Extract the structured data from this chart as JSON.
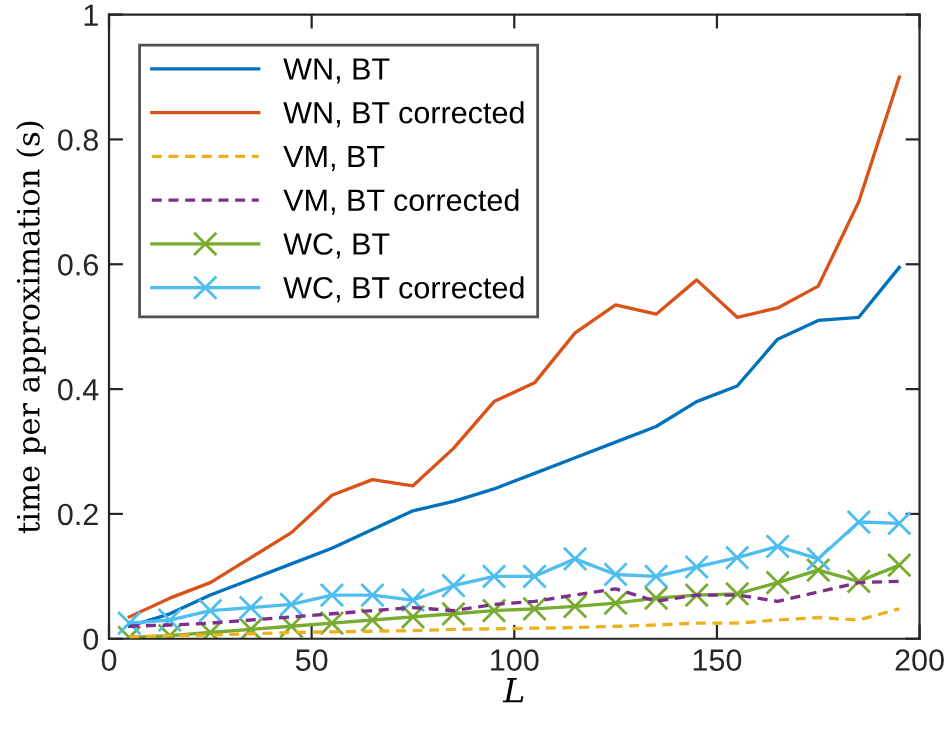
{
  "chart_data": {
    "type": "line",
    "xlabel": "L",
    "ylabel": "time per approximation (s)",
    "x": [
      5,
      15,
      25,
      35,
      45,
      55,
      65,
      75,
      85,
      95,
      105,
      115,
      125,
      135,
      145,
      155,
      165,
      175,
      185,
      195
    ],
    "xlim": [
      0,
      200
    ],
    "xticks": [
      0,
      50,
      100,
      150,
      200
    ],
    "ylim": [
      0,
      1
    ],
    "yticks": [
      0,
      {
        "value": 0.2,
        "label": "0.2"
      },
      {
        "value": 0.4,
        "label": "0.4"
      },
      {
        "value": 0.6,
        "label": "0.6"
      },
      {
        "value": 0.8,
        "label": "0.8"
      },
      1
    ],
    "grid": false,
    "legend": "top left",
    "series": [
      {
        "name": "WN, BT",
        "color": "#0072bd",
        "line_style": "solid",
        "marker": "none",
        "values": [
          0.02,
          0.04,
          0.07,
          0.095,
          0.12,
          0.145,
          0.175,
          0.205,
          0.22,
          0.24,
          0.265,
          0.29,
          0.315,
          0.34,
          0.38,
          0.405,
          0.48,
          0.51,
          0.515,
          0.595
        ]
      },
      {
        "name": "WN, BT corrected",
        "color": "#d95319",
        "line_style": "solid",
        "marker": "none",
        "values": [
          0.035,
          0.065,
          0.09,
          0.13,
          0.17,
          0.23,
          0.255,
          0.245,
          0.305,
          0.38,
          0.41,
          0.49,
          0.535,
          0.52,
          0.575,
          0.515,
          0.53,
          0.565,
          0.7,
          0.9
        ]
      },
      {
        "name": "VM, BT",
        "color": "#edb120",
        "line_style": "dashed",
        "marker": "none",
        "values": [
          0.003,
          0.005,
          0.006,
          0.008,
          0.01,
          0.011,
          0.012,
          0.013,
          0.015,
          0.016,
          0.017,
          0.018,
          0.02,
          0.022,
          0.025,
          0.025,
          0.03,
          0.034,
          0.03,
          0.048
        ]
      },
      {
        "name": "VM, BT corrected",
        "color": "#7e2f8e",
        "line_style": "dashed",
        "marker": "none",
        "values": [
          0.02,
          0.022,
          0.025,
          0.03,
          0.035,
          0.04,
          0.045,
          0.05,
          0.045,
          0.055,
          0.06,
          0.07,
          0.08,
          0.06,
          0.07,
          0.07,
          0.06,
          0.075,
          0.09,
          0.092
        ]
      },
      {
        "name": "WC, BT",
        "color": "#77ac30",
        "line_style": "solid",
        "marker": "cross",
        "values": [
          0.002,
          0.005,
          0.01,
          0.015,
          0.02,
          0.025,
          0.03,
          0.035,
          0.04,
          0.045,
          0.048,
          0.052,
          0.057,
          0.065,
          0.07,
          0.072,
          0.09,
          0.11,
          0.092,
          0.118
        ]
      },
      {
        "name": "WC, BT corrected",
        "color": "#4dbeee",
        "line_style": "solid",
        "marker": "cross",
        "values": [
          0.025,
          0.03,
          0.045,
          0.05,
          0.055,
          0.07,
          0.07,
          0.062,
          0.085,
          0.1,
          0.1,
          0.128,
          0.103,
          0.1,
          0.115,
          0.13,
          0.148,
          0.128,
          0.187,
          0.185
        ]
      }
    ]
  }
}
